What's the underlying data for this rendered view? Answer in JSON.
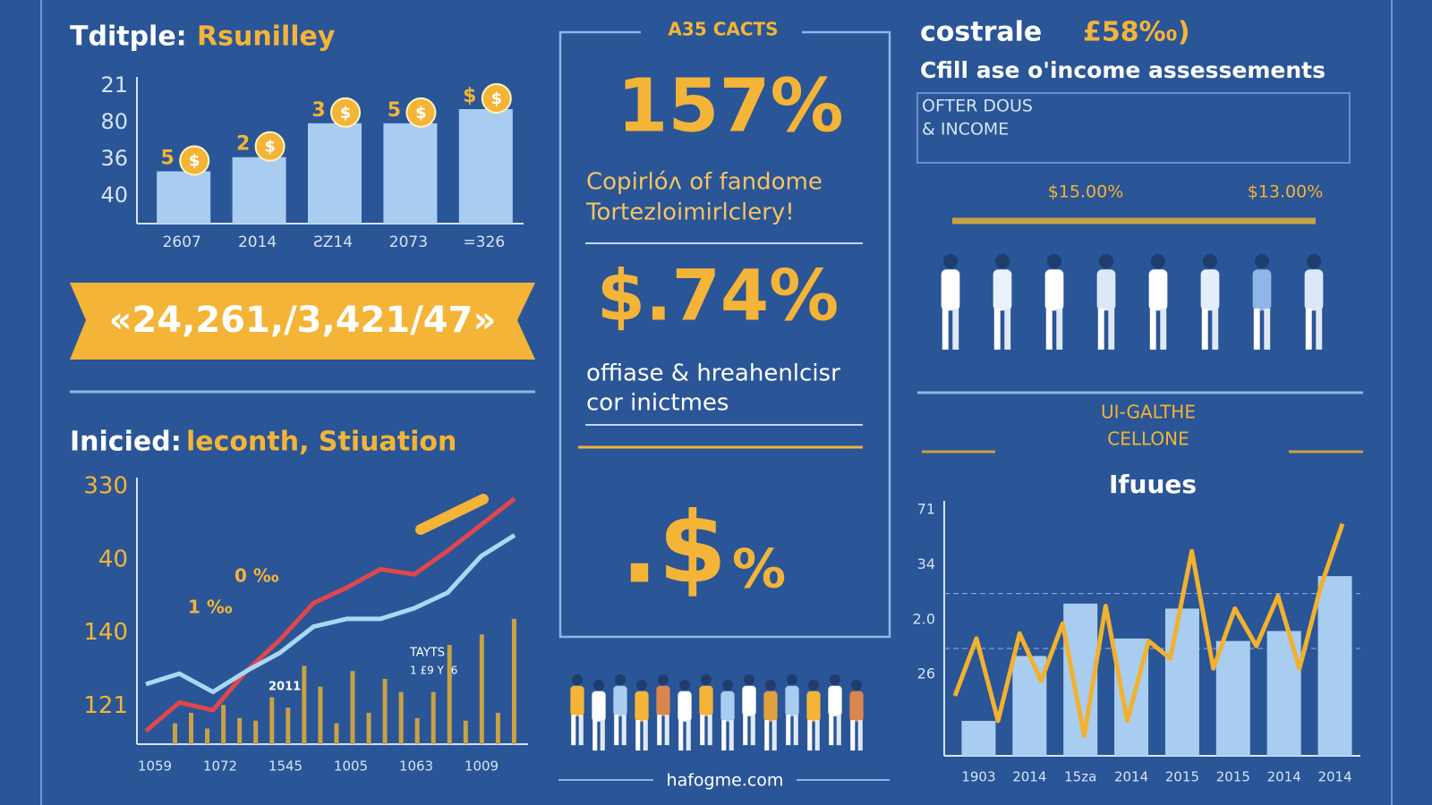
{
  "left_top": {
    "title_a": "Tditple:",
    "title_b": "Rsunilley",
    "chart": {
      "type": "bar",
      "categories": [
        "2607",
        "2014",
        "ƧZ14",
        "2073",
        "=326"
      ],
      "values": [
        37,
        47,
        71,
        71,
        81
      ],
      "bar_labels": [
        "5",
        "2",
        "3",
        "5",
        "$"
      ],
      "coin": "$",
      "ylim": [
        0,
        100
      ],
      "y_labels": [
        "21",
        "80",
        "36",
        "40"
      ],
      "color": "#a9cdf0"
    },
    "banner": "«24,261,/3,421/47»"
  },
  "left_bottom": {
    "title_a": "Inicied:",
    "title_b": "leconth, Stiuation",
    "chart": {
      "type": "line",
      "x_labels": [
        "1059",
        "1072",
        "1545",
        "1005",
        "1063",
        "1009"
      ],
      "y_labels": [
        "330",
        "40",
        "140",
        "121"
      ],
      "ylim": [
        0,
        100
      ],
      "series": [
        {
          "color": "#e0474c",
          "values": [
            5,
            16,
            13,
            28,
            40,
            54,
            60,
            67,
            65,
            74,
            84,
            94
          ]
        },
        {
          "color": "#a9d8f4",
          "values": [
            23,
            27,
            20,
            28,
            35,
            45,
            48,
            48,
            52,
            58,
            72,
            80
          ]
        }
      ],
      "bars": {
        "color": "#c9a245",
        "values": [
          8,
          12,
          6,
          15,
          10,
          9,
          18,
          14,
          30,
          22,
          8,
          28,
          12,
          25,
          20,
          10,
          20,
          38,
          9,
          42,
          12,
          48
        ]
      }
    },
    "annotations": [
      "2011",
      "TAYTS",
      "1 £9 Y /6",
      "0 ‰",
      "1 ‰"
    ]
  },
  "center": {
    "header": "A35 CACTS",
    "stat1": "157%",
    "text1": [
      "Copirlóᴧ of fandome",
      "Tortezloimirlclery!"
    ],
    "stat2": "$.74%",
    "text2": [
      "offiase & hreahenlcisr",
      "cor inictmes"
    ],
    "stat3a": ".$",
    "stat3b": "%",
    "footer": "hafogme.com"
  },
  "right": {
    "title_a": "costrale",
    "title_b": "£58%₀)",
    "subtitle": "Cfill ase o'income assessements",
    "box_text": [
      "OFTER DOUS",
      "& INCOME"
    ],
    "labels": [
      "$15.00%",
      "$13.00%"
    ],
    "section": [
      "UI-GALTHE",
      "CELLONE"
    ],
    "chart": {
      "type": "bar",
      "title": "Ifuues",
      "categories": [
        "1903",
        "2014",
        "15za",
        "2014",
        "2015",
        "2015",
        "2014",
        "2014"
      ],
      "values": [
        14,
        40,
        61,
        47,
        59,
        46,
        50,
        72
      ],
      "ylim": [
        0,
        100
      ],
      "y_labels": [
        "71",
        "34",
        "2.0",
        "26"
      ],
      "color": "#a9cdf0",
      "line": {
        "color": "#f2b12e",
        "values": [
          24,
          47,
          14,
          49,
          30,
          53,
          8,
          60,
          14,
          46,
          39,
          82,
          35,
          59,
          44,
          64,
          35,
          68,
          93
        ]
      }
    }
  }
}
